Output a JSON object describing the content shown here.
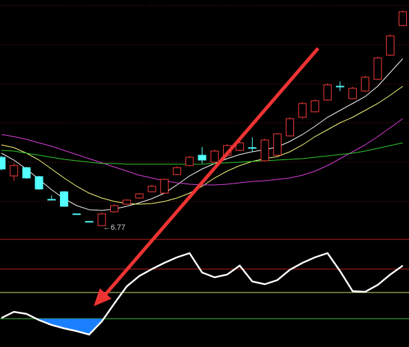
{
  "chart_data": {
    "type": "candlestick",
    "up_color": "#ff3b3b",
    "down_color": "#54ffff",
    "ylim": [
      6.64,
      10.04
    ],
    "yticks": [
      9.96,
      9.39,
      8.82,
      8.26,
      7.69,
      7.12
    ],
    "grid": true,
    "grid_color": "#8b1a1a",
    "open": [
      7.76,
      7.49,
      7.61,
      7.48,
      7.15,
      7.26,
      6.94,
      6.83,
      6.77,
      6.97,
      7.08,
      7.17,
      7.26,
      7.24,
      7.51,
      7.64,
      7.79,
      7.69,
      7.79,
      7.86,
      7.9,
      7.71,
      7.79,
      8.07,
      8.34,
      8.42,
      8.59,
      8.79,
      8.61,
      8.72,
      8.89,
      9.24,
      9.67
    ],
    "high": [
      7.78,
      7.67,
      7.62,
      7.49,
      7.21,
      7.27,
      6.94,
      6.83,
      6.96,
      7.08,
      7.15,
      7.24,
      7.36,
      7.45,
      7.63,
      7.78,
      7.91,
      7.87,
      7.95,
      7.99,
      8.05,
      8.03,
      8.11,
      8.34,
      8.56,
      8.6,
      8.83,
      8.86,
      8.78,
      8.94,
      9.22,
      9.54,
      9.89
    ],
    "low": [
      7.57,
      7.42,
      7.45,
      7.29,
      7.14,
      7.04,
      6.93,
      6.82,
      6.77,
      6.96,
      7.07,
      7.16,
      7.25,
      7.23,
      7.5,
      7.63,
      7.67,
      7.68,
      7.77,
      7.85,
      7.84,
      7.7,
      7.78,
      8.06,
      8.32,
      8.41,
      8.58,
      8.72,
      8.6,
      8.71,
      8.88,
      9.23,
      9.66
    ],
    "close": [
      7.59,
      7.64,
      7.46,
      7.3,
      7.14,
      7.05,
      6.93,
      6.82,
      6.94,
      7.06,
      7.14,
      7.23,
      7.34,
      7.44,
      7.61,
      7.76,
      7.72,
      7.85,
      7.93,
      7.97,
      7.89,
      8.01,
      8.1,
      8.32,
      8.54,
      8.58,
      8.81,
      8.78,
      8.76,
      8.92,
      9.2,
      9.52,
      9.87
    ],
    "series": [
      {
        "color": "#ffffff",
        "values": [
          7.82,
          7.72,
          7.59,
          7.44,
          7.29,
          7.16,
          7.06,
          7.0,
          6.99,
          7.01,
          7.05,
          7.1,
          7.16,
          7.24,
          7.36,
          7.49,
          7.59,
          7.67,
          7.74,
          7.8,
          7.84,
          7.87,
          7.91,
          7.99,
          8.09,
          8.21,
          8.34,
          8.44,
          8.54,
          8.64,
          8.79,
          8.99,
          9.19
        ]
      },
      {
        "color": "#ffff80",
        "values": [
          7.94,
          7.9,
          7.82,
          7.72,
          7.59,
          7.46,
          7.34,
          7.24,
          7.17,
          7.12,
          7.09,
          7.08,
          7.09,
          7.12,
          7.17,
          7.24,
          7.34,
          7.46,
          7.56,
          7.64,
          7.7,
          7.74,
          7.77,
          7.84,
          7.94,
          8.06,
          8.16,
          8.26,
          8.34,
          8.44,
          8.54,
          8.66,
          8.79
        ]
      },
      {
        "color": "#e040e0",
        "values": [
          8.09,
          8.06,
          8.02,
          7.97,
          7.92,
          7.86,
          7.8,
          7.74,
          7.68,
          7.62,
          7.56,
          7.5,
          7.46,
          7.42,
          7.39,
          7.37,
          7.36,
          7.36,
          7.37,
          7.39,
          7.41,
          7.42,
          7.44,
          7.46,
          7.5,
          7.56,
          7.64,
          7.74,
          7.84,
          7.94,
          8.06,
          8.19,
          8.32
        ]
      },
      {
        "color": "#30d030",
        "values": [
          7.86,
          7.85,
          7.82,
          7.79,
          7.76,
          7.73,
          7.71,
          7.69,
          7.67,
          7.67,
          7.66,
          7.66,
          7.66,
          7.66,
          7.66,
          7.66,
          7.66,
          7.67,
          7.68,
          7.69,
          7.7,
          7.71,
          7.72,
          7.73,
          7.74,
          7.76,
          7.78,
          7.8,
          7.82,
          7.85,
          7.89,
          7.93,
          7.97
        ]
      }
    ],
    "annotations": [
      {
        "text": "←6.77"
      }
    ],
    "indicator": {
      "color": "#ffffff",
      "fill_color": "#1a7fff",
      "values": [
        42,
        51,
        48,
        39,
        32,
        27,
        23,
        18,
        37,
        63,
        88,
        103,
        113,
        122,
        130,
        136,
        108,
        101,
        105,
        118,
        95,
        91,
        97,
        112,
        122,
        130,
        136,
        110,
        81,
        80,
        90,
        105,
        118
      ],
      "y2lim": [
        0,
        163
      ],
      "y2ticks": [
        156,
        113,
        79,
        41
      ],
      "level_colors": [
        "#c02020",
        "#c02020",
        "#d8e070",
        "#40c040"
      ]
    }
  }
}
